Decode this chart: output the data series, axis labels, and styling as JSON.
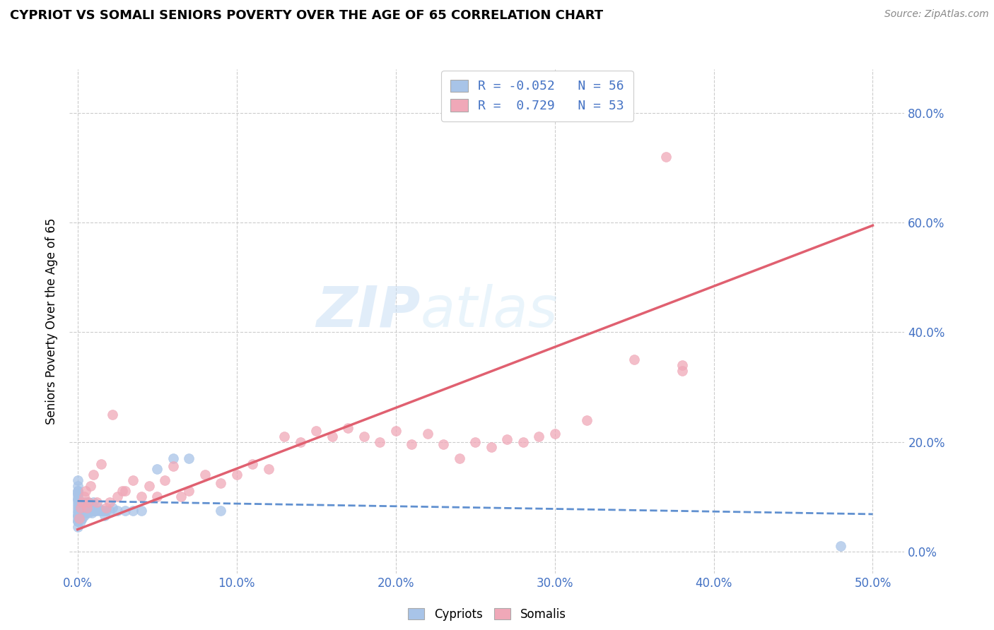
{
  "title": "CYPRIOT VS SOMALI SENIORS POVERTY OVER THE AGE OF 65 CORRELATION CHART",
  "source": "Source: ZipAtlas.com",
  "xlabel_ticks": [
    "0.0%",
    "10.0%",
    "20.0%",
    "30.0%",
    "40.0%",
    "50.0%"
  ],
  "ylabel_ticks_left": [
    "",
    "",
    "",
    "",
    ""
  ],
  "ylabel_ticks_right": [
    "0.0%",
    "20.0%",
    "40.0%",
    "60.0%",
    "80.0%"
  ],
  "xlabel_vals": [
    0.0,
    0.1,
    0.2,
    0.3,
    0.4,
    0.5
  ],
  "ylabel_vals": [
    0.0,
    0.2,
    0.4,
    0.6,
    0.8
  ],
  "xlim": [
    -0.005,
    0.52
  ],
  "ylim": [
    -0.04,
    0.88
  ],
  "ylabel": "Seniors Poverty Over the Age of 65",
  "legend_labels": [
    "Cypriots",
    "Somalis"
  ],
  "cypriot_color": "#a8c4e8",
  "somali_color": "#f0a8b8",
  "cypriot_line_color": "#6090d0",
  "somali_line_color": "#e06070",
  "watermark_zip": "ZIP",
  "watermark_atlas": "atlas",
  "cyp_line_x0": 0.0,
  "cyp_line_x1": 0.5,
  "cyp_line_y0": 0.092,
  "cyp_line_y1": 0.068,
  "som_line_x0": 0.0,
  "som_line_x1": 0.5,
  "som_line_y0": 0.04,
  "som_line_y1": 0.595,
  "legend1_text1": "R = -0.052",
  "legend1_n1": "N = 56",
  "legend1_text2": "R =  0.729",
  "legend1_n2": "N = 53",
  "cypriot_x": [
    0.0,
    0.0,
    0.0,
    0.0,
    0.0,
    0.0,
    0.0,
    0.0,
    0.0,
    0.0,
    0.0,
    0.0,
    0.0,
    0.0,
    0.0,
    0.0,
    0.0,
    0.0,
    0.0,
    0.0,
    0.002,
    0.002,
    0.003,
    0.003,
    0.004,
    0.004,
    0.005,
    0.005,
    0.006,
    0.006,
    0.007,
    0.007,
    0.008,
    0.009,
    0.009,
    0.01,
    0.01,
    0.011,
    0.012,
    0.013,
    0.014,
    0.015,
    0.016,
    0.017,
    0.018,
    0.02,
    0.022,
    0.025,
    0.03,
    0.035,
    0.04,
    0.05,
    0.06,
    0.07,
    0.09,
    0.48
  ],
  "cypriot_y": [
    0.045,
    0.055,
    0.065,
    0.075,
    0.085,
    0.095,
    0.105,
    0.11,
    0.12,
    0.13,
    0.06,
    0.07,
    0.08,
    0.09,
    0.095,
    0.1,
    0.105,
    0.11,
    0.055,
    0.065,
    0.055,
    0.075,
    0.06,
    0.08,
    0.065,
    0.085,
    0.07,
    0.09,
    0.075,
    0.085,
    0.07,
    0.09,
    0.075,
    0.07,
    0.085,
    0.075,
    0.09,
    0.075,
    0.075,
    0.08,
    0.075,
    0.075,
    0.075,
    0.065,
    0.075,
    0.075,
    0.08,
    0.075,
    0.075,
    0.075,
    0.075,
    0.15,
    0.17,
    0.17,
    0.075,
    0.01
  ],
  "somali_x": [
    0.001,
    0.002,
    0.003,
    0.004,
    0.005,
    0.006,
    0.007,
    0.008,
    0.01,
    0.012,
    0.015,
    0.018,
    0.02,
    0.022,
    0.025,
    0.028,
    0.03,
    0.035,
    0.04,
    0.045,
    0.05,
    0.055,
    0.06,
    0.065,
    0.07,
    0.08,
    0.09,
    0.1,
    0.11,
    0.12,
    0.13,
    0.14,
    0.15,
    0.16,
    0.17,
    0.18,
    0.19,
    0.2,
    0.21,
    0.22,
    0.23,
    0.24,
    0.25,
    0.26,
    0.27,
    0.28,
    0.29,
    0.3,
    0.32,
    0.35,
    0.38,
    0.37,
    0.38
  ],
  "somali_y": [
    0.06,
    0.08,
    0.09,
    0.1,
    0.11,
    0.08,
    0.09,
    0.12,
    0.14,
    0.09,
    0.16,
    0.08,
    0.09,
    0.25,
    0.1,
    0.11,
    0.11,
    0.13,
    0.1,
    0.12,
    0.1,
    0.13,
    0.155,
    0.1,
    0.11,
    0.14,
    0.125,
    0.14,
    0.16,
    0.15,
    0.21,
    0.2,
    0.22,
    0.21,
    0.225,
    0.21,
    0.2,
    0.22,
    0.195,
    0.215,
    0.195,
    0.17,
    0.2,
    0.19,
    0.205,
    0.2,
    0.21,
    0.215,
    0.24,
    0.35,
    0.34,
    0.72,
    0.33
  ]
}
